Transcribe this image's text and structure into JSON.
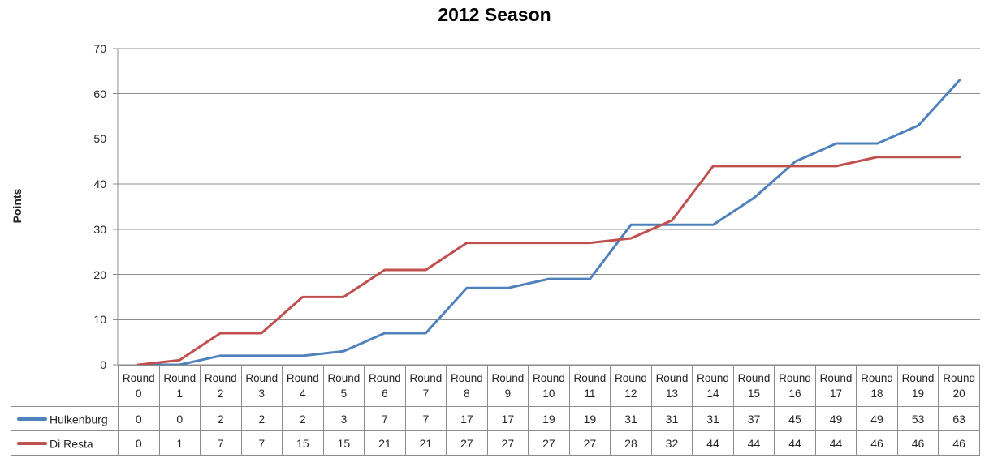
{
  "title": "2012 Season",
  "y_axis_label": "Points",
  "chart_data": {
    "type": "line",
    "title": "2012 Season",
    "xlabel": "",
    "ylabel": "Points",
    "categories": [
      "Round 0",
      "Round 1",
      "Round 2",
      "Round 3",
      "Round 4",
      "Round 5",
      "Round 6",
      "Round 7",
      "Round 8",
      "Round 9",
      "Round 10",
      "Round 11",
      "Round 12",
      "Round 13",
      "Round 14",
      "Round 15",
      "Round 16",
      "Round 17",
      "Round 18",
      "Round 19",
      "Round 20"
    ],
    "series": [
      {
        "name": "Hulkenburg",
        "color": "#4F81BD",
        "values": [
          0,
          0,
          2,
          2,
          2,
          3,
          7,
          7,
          17,
          17,
          19,
          19,
          31,
          31,
          31,
          37,
          45,
          49,
          49,
          53,
          63
        ]
      },
      {
        "name": "Di Resta",
        "color": "#C0504D",
        "values": [
          0,
          1,
          7,
          7,
          15,
          15,
          21,
          21,
          27,
          27,
          27,
          27,
          28,
          32,
          44,
          44,
          44,
          44,
          46,
          46,
          46
        ]
      }
    ],
    "ylim": [
      0,
      70
    ],
    "yticks": [
      0,
      10,
      20,
      30,
      40,
      50,
      60,
      70
    ],
    "grid": true,
    "legend_position": "data-table-left",
    "colors": {
      "gridline": "#8B8B8B",
      "axis": "#8B8B8B",
      "table_border": "#8B8B8B",
      "text": "#262626",
      "title": "#000000"
    }
  }
}
